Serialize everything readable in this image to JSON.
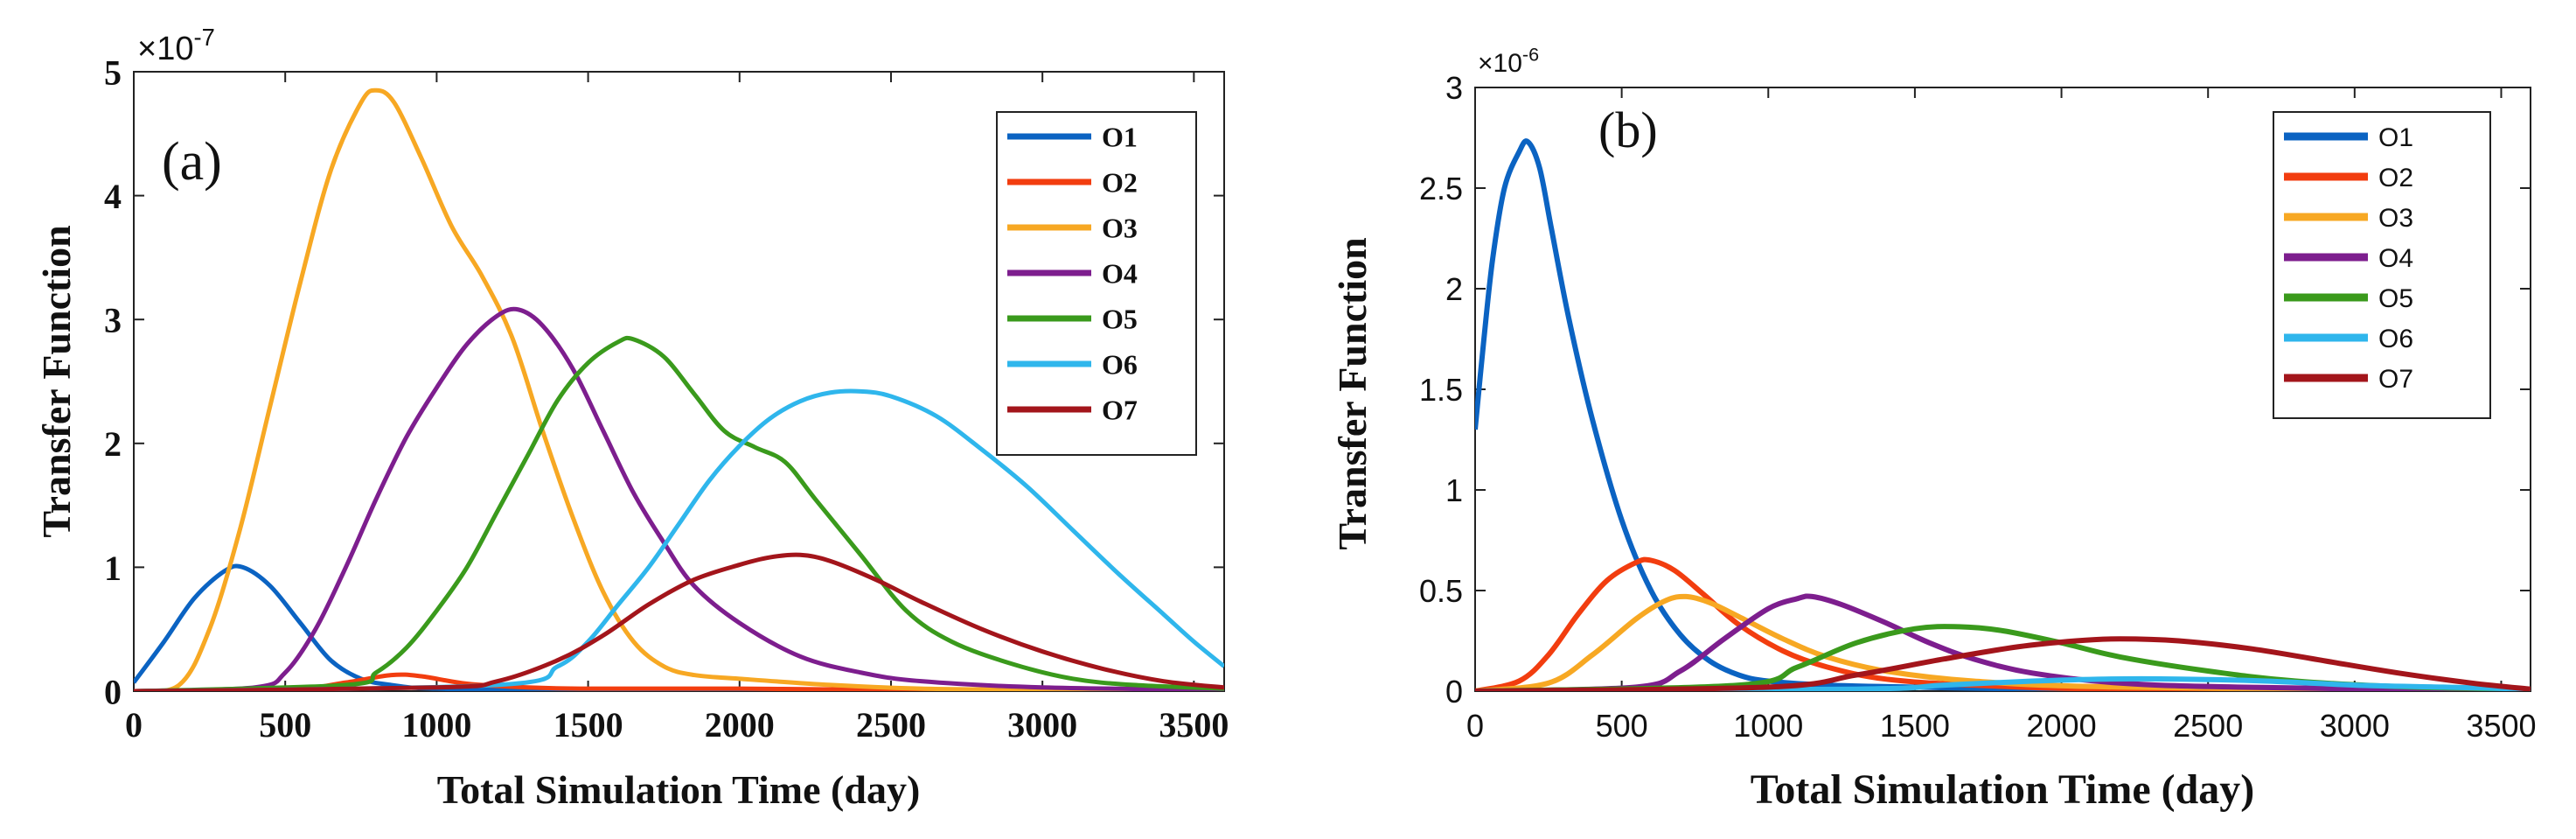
{
  "chart_data": [
    {
      "type": "line",
      "panel_label": "(a)",
      "xlabel": "Total Simulation Time (day)",
      "ylabel": "Transfer Function",
      "y_multiplier_base": "×10",
      "y_multiplier_exp": "-7",
      "xlim": [
        0,
        3600
      ],
      "ylim": [
        0,
        5
      ],
      "x_ticks": [
        0,
        500,
        1000,
        1500,
        2000,
        2500,
        3000,
        3500
      ],
      "y_ticks": [
        0,
        1,
        2,
        3,
        4,
        5
      ],
      "legend_position": "top-right",
      "series": [
        {
          "name": "O1",
          "color": "#0b63c2",
          "points": [
            [
              0,
              0.07
            ],
            [
              100,
              0.4
            ],
            [
              200,
              0.75
            ],
            [
              300,
              0.97
            ],
            [
              360,
              1.0
            ],
            [
              450,
              0.85
            ],
            [
              550,
              0.55
            ],
            [
              650,
              0.25
            ],
            [
              750,
              0.1
            ],
            [
              850,
              0.05
            ],
            [
              1000,
              0.02
            ],
            [
              1500,
              0.01
            ],
            [
              2000,
              0.01
            ],
            [
              3600,
              0.0
            ]
          ]
        },
        {
          "name": "O2",
          "color": "#f23d0f",
          "points": [
            [
              0,
              0.0
            ],
            [
              500,
              0.01
            ],
            [
              700,
              0.07
            ],
            [
              850,
              0.13
            ],
            [
              950,
              0.12
            ],
            [
              1100,
              0.06
            ],
            [
              1300,
              0.03
            ],
            [
              1500,
              0.02
            ],
            [
              2000,
              0.02
            ],
            [
              2500,
              0.01
            ],
            [
              3600,
              0.0
            ]
          ]
        },
        {
          "name": "O3",
          "color": "#f7a823",
          "points": [
            [
              0,
              0.0
            ],
            [
              150,
              0.05
            ],
            [
              250,
              0.5
            ],
            [
              350,
              1.3
            ],
            [
              450,
              2.3
            ],
            [
              550,
              3.3
            ],
            [
              650,
              4.2
            ],
            [
              750,
              4.75
            ],
            [
              800,
              4.85
            ],
            [
              860,
              4.75
            ],
            [
              950,
              4.3
            ],
            [
              1050,
              3.75
            ],
            [
              1150,
              3.35
            ],
            [
              1250,
              2.85
            ],
            [
              1350,
              2.1
            ],
            [
              1450,
              1.4
            ],
            [
              1550,
              0.8
            ],
            [
              1650,
              0.4
            ],
            [
              1750,
              0.2
            ],
            [
              1850,
              0.13
            ],
            [
              2000,
              0.1
            ],
            [
              2300,
              0.05
            ],
            [
              2600,
              0.02
            ],
            [
              3000,
              0.01
            ],
            [
              3600,
              0.0
            ]
          ]
        },
        {
          "name": "O4",
          "color": "#7d1e8e",
          "points": [
            [
              0,
              0.0
            ],
            [
              400,
              0.03
            ],
            [
              500,
              0.15
            ],
            [
              600,
              0.5
            ],
            [
              700,
              1.0
            ],
            [
              800,
              1.55
            ],
            [
              900,
              2.05
            ],
            [
              1000,
              2.45
            ],
            [
              1100,
              2.8
            ],
            [
              1200,
              3.03
            ],
            [
              1270,
              3.08
            ],
            [
              1350,
              2.95
            ],
            [
              1450,
              2.6
            ],
            [
              1550,
              2.1
            ],
            [
              1650,
              1.6
            ],
            [
              1750,
              1.2
            ],
            [
              1850,
              0.85
            ],
            [
              2000,
              0.55
            ],
            [
              2200,
              0.28
            ],
            [
              2400,
              0.15
            ],
            [
              2600,
              0.08
            ],
            [
              3000,
              0.03
            ],
            [
              3600,
              0.01
            ]
          ]
        },
        {
          "name": "O5",
          "color": "#3a9a1c",
          "points": [
            [
              0,
              0.0
            ],
            [
              700,
              0.05
            ],
            [
              800,
              0.15
            ],
            [
              900,
              0.35
            ],
            [
              1000,
              0.65
            ],
            [
              1100,
              1.0
            ],
            [
              1200,
              1.45
            ],
            [
              1300,
              1.9
            ],
            [
              1400,
              2.35
            ],
            [
              1500,
              2.65
            ],
            [
              1600,
              2.82
            ],
            [
              1650,
              2.84
            ],
            [
              1750,
              2.7
            ],
            [
              1850,
              2.4
            ],
            [
              1950,
              2.1
            ],
            [
              2050,
              1.97
            ],
            [
              2150,
              1.85
            ],
            [
              2250,
              1.55
            ],
            [
              2400,
              1.1
            ],
            [
              2550,
              0.65
            ],
            [
              2700,
              0.4
            ],
            [
              2900,
              0.22
            ],
            [
              3100,
              0.1
            ],
            [
              3300,
              0.05
            ],
            [
              3600,
              0.02
            ]
          ]
        },
        {
          "name": "O6",
          "color": "#2fb6ec",
          "points": [
            [
              0,
              0.0
            ],
            [
              1200,
              0.05
            ],
            [
              1400,
              0.2
            ],
            [
              1500,
              0.4
            ],
            [
              1600,
              0.7
            ],
            [
              1700,
              1.0
            ],
            [
              1800,
              1.35
            ],
            [
              1900,
              1.7
            ],
            [
              2000,
              1.98
            ],
            [
              2100,
              2.2
            ],
            [
              2200,
              2.34
            ],
            [
              2300,
              2.41
            ],
            [
              2400,
              2.42
            ],
            [
              2500,
              2.38
            ],
            [
              2650,
              2.22
            ],
            [
              2800,
              1.95
            ],
            [
              2950,
              1.65
            ],
            [
              3100,
              1.3
            ],
            [
              3250,
              0.95
            ],
            [
              3400,
              0.62
            ],
            [
              3500,
              0.4
            ],
            [
              3600,
              0.2
            ]
          ]
        },
        {
          "name": "O7",
          "color": "#a3151b",
          "points": [
            [
              0,
              0.0
            ],
            [
              1000,
              0.03
            ],
            [
              1200,
              0.08
            ],
            [
              1400,
              0.25
            ],
            [
              1550,
              0.45
            ],
            [
              1700,
              0.7
            ],
            [
              1850,
              0.9
            ],
            [
              2000,
              1.02
            ],
            [
              2100,
              1.08
            ],
            [
              2200,
              1.1
            ],
            [
              2300,
              1.05
            ],
            [
              2450,
              0.9
            ],
            [
              2600,
              0.72
            ],
            [
              2800,
              0.5
            ],
            [
              3000,
              0.32
            ],
            [
              3200,
              0.18
            ],
            [
              3400,
              0.08
            ],
            [
              3600,
              0.03
            ]
          ]
        }
      ]
    },
    {
      "type": "line",
      "panel_label": "(b)",
      "xlabel": "Total Simulation Time (day)",
      "ylabel": "Transfer Function",
      "y_multiplier_base": "×10",
      "y_multiplier_exp": "-6",
      "xlim": [
        0,
        3600
      ],
      "ylim": [
        0,
        3
      ],
      "x_ticks": [
        0,
        500,
        1000,
        1500,
        2000,
        2500,
        3000,
        3500
      ],
      "y_ticks": [
        0,
        0.5,
        1,
        1.5,
        2,
        2.5,
        3
      ],
      "legend_position": "top-right",
      "series": [
        {
          "name": "O1",
          "color": "#0b63c2",
          "points": [
            [
              0,
              1.3
            ],
            [
              30,
              1.75
            ],
            [
              60,
              2.15
            ],
            [
              100,
              2.5
            ],
            [
              150,
              2.68
            ],
            [
              180,
              2.73
            ],
            [
              220,
              2.6
            ],
            [
              260,
              2.3
            ],
            [
              320,
              1.85
            ],
            [
              400,
              1.35
            ],
            [
              500,
              0.85
            ],
            [
              600,
              0.5
            ],
            [
              700,
              0.28
            ],
            [
              800,
              0.15
            ],
            [
              900,
              0.08
            ],
            [
              1000,
              0.05
            ],
            [
              1200,
              0.03
            ],
            [
              1500,
              0.02
            ],
            [
              2000,
              0.01
            ],
            [
              3600,
              0.0
            ]
          ]
        },
        {
          "name": "O2",
          "color": "#f23d0f",
          "points": [
            [
              0,
              0.0
            ],
            [
              150,
              0.05
            ],
            [
              250,
              0.18
            ],
            [
              350,
              0.38
            ],
            [
              450,
              0.55
            ],
            [
              550,
              0.64
            ],
            [
              600,
              0.65
            ],
            [
              680,
              0.6
            ],
            [
              780,
              0.48
            ],
            [
              900,
              0.33
            ],
            [
              1050,
              0.2
            ],
            [
              1200,
              0.12
            ],
            [
              1400,
              0.06
            ],
            [
              1700,
              0.03
            ],
            [
              2200,
              0.01
            ],
            [
              3600,
              0.0
            ]
          ]
        },
        {
          "name": "O3",
          "color": "#f7a823",
          "points": [
            [
              0,
              0.0
            ],
            [
              250,
              0.04
            ],
            [
              400,
              0.18
            ],
            [
              550,
              0.36
            ],
            [
              650,
              0.45
            ],
            [
              720,
              0.47
            ],
            [
              800,
              0.44
            ],
            [
              900,
              0.37
            ],
            [
              1050,
              0.26
            ],
            [
              1200,
              0.17
            ],
            [
              1400,
              0.1
            ],
            [
              1700,
              0.05
            ],
            [
              2200,
              0.02
            ],
            [
              3600,
              0.0
            ]
          ]
        },
        {
          "name": "O4",
          "color": "#7d1e8e",
          "points": [
            [
              0,
              0.0
            ],
            [
              550,
              0.02
            ],
            [
              700,
              0.1
            ],
            [
              850,
              0.26
            ],
            [
              1000,
              0.41
            ],
            [
              1100,
              0.46
            ],
            [
              1150,
              0.47
            ],
            [
              1250,
              0.43
            ],
            [
              1400,
              0.34
            ],
            [
              1550,
              0.24
            ],
            [
              1700,
              0.16
            ],
            [
              1900,
              0.09
            ],
            [
              2200,
              0.04
            ],
            [
              2600,
              0.02
            ],
            [
              3600,
              0.0
            ]
          ]
        },
        {
          "name": "O5",
          "color": "#3a9a1c",
          "points": [
            [
              0,
              0.0
            ],
            [
              900,
              0.03
            ],
            [
              1100,
              0.12
            ],
            [
              1300,
              0.24
            ],
            [
              1500,
              0.31
            ],
            [
              1650,
              0.32
            ],
            [
              1800,
              0.3
            ],
            [
              2000,
              0.24
            ],
            [
              2200,
              0.17
            ],
            [
              2500,
              0.1
            ],
            [
              2800,
              0.05
            ],
            [
              3200,
              0.02
            ],
            [
              3600,
              0.01
            ]
          ]
        },
        {
          "name": "O6",
          "color": "#2fb6ec",
          "points": [
            [
              0,
              0.0
            ],
            [
              1300,
              0.01
            ],
            [
              1600,
              0.03
            ],
            [
              1900,
              0.05
            ],
            [
              2150,
              0.06
            ],
            [
              2400,
              0.06
            ],
            [
              2700,
              0.05
            ],
            [
              3000,
              0.03
            ],
            [
              3300,
              0.02
            ],
            [
              3600,
              0.01
            ]
          ]
        },
        {
          "name": "O7",
          "color": "#a3151b",
          "points": [
            [
              0,
              0.0
            ],
            [
              1000,
              0.02
            ],
            [
              1300,
              0.08
            ],
            [
              1600,
              0.16
            ],
            [
              1850,
              0.22
            ],
            [
              2050,
              0.25
            ],
            [
              2200,
              0.26
            ],
            [
              2400,
              0.25
            ],
            [
              2650,
              0.21
            ],
            [
              2900,
              0.15
            ],
            [
              3150,
              0.09
            ],
            [
              3400,
              0.04
            ],
            [
              3600,
              0.01
            ]
          ]
        }
      ]
    }
  ]
}
